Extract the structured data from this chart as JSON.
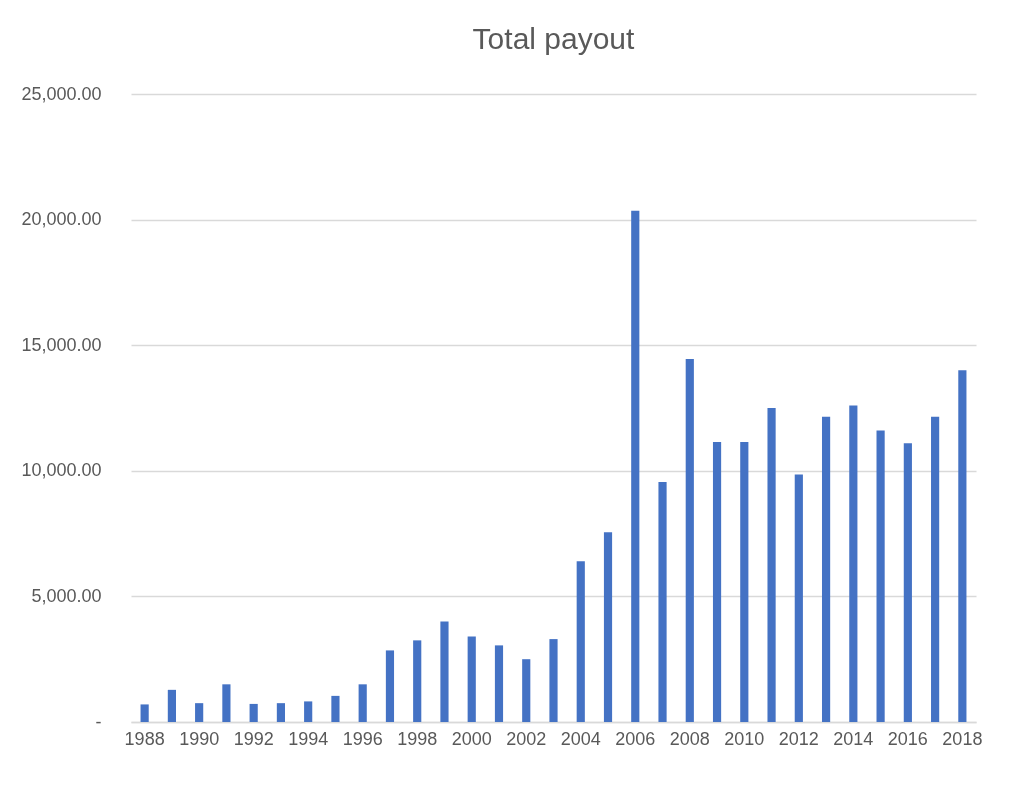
{
  "chart_data": {
    "type": "bar",
    "title": "Total payout",
    "categories": [
      "1988",
      null,
      "1990",
      null,
      "1992",
      null,
      "1994",
      null,
      "1996",
      null,
      "1998",
      null,
      "2000",
      null,
      "2002",
      null,
      "2004",
      null,
      "2006",
      null,
      "2008",
      null,
      "2010",
      null,
      "2012",
      null,
      "2014",
      null,
      "2016",
      null,
      "2018"
    ],
    "values": [
      700,
      1280,
      750,
      1500,
      720,
      750,
      820,
      1040,
      1500,
      2850,
      3250,
      4000,
      3400,
      3050,
      2500,
      3300,
      6400,
      7550,
      20350,
      9550,
      14450,
      11150,
      11150,
      12500,
      9850,
      12150,
      12600,
      11600,
      11100,
      12150,
      14000
    ],
    "color": "#4472c4",
    "ylim": [
      0,
      25000
    ],
    "yticks": [
      {
        "value": 0,
        "label": "-"
      },
      {
        "value": 5000,
        "label": "5,000.00"
      },
      {
        "value": 10000,
        "label": "10,000.00"
      },
      {
        "value": 15000,
        "label": "15,000.00"
      },
      {
        "value": 20000,
        "label": "20,000.00"
      },
      {
        "value": 25000,
        "label": "25,000.00"
      }
    ],
    "grid": "y"
  }
}
